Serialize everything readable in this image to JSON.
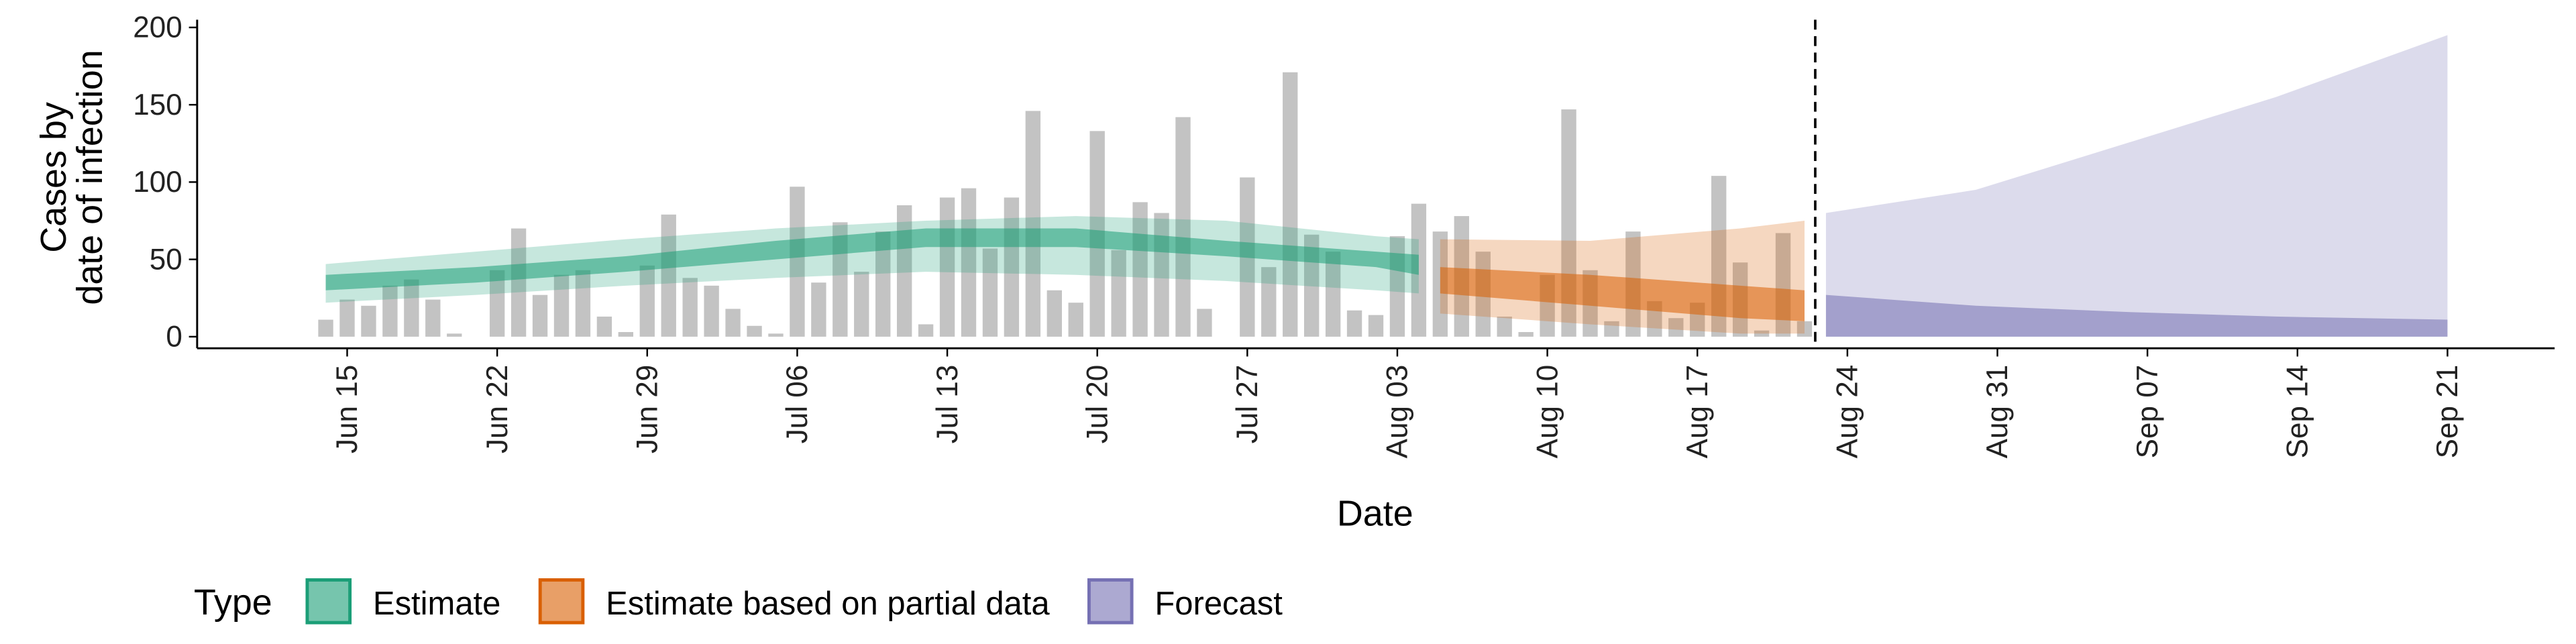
{
  "chart_data": {
    "type": "bar-band",
    "ylabel": [
      "Cases by",
      "date of infection"
    ],
    "xlabel": "Date",
    "legend_title": "Type",
    "legend": "bottom",
    "xlim": [
      160,
      270
    ],
    "ylim": [
      -7.5,
      205
    ],
    "yticks": [
      0,
      50,
      100,
      150,
      200
    ],
    "xticks": [
      {
        "value": 167,
        "label": "Jun 15"
      },
      {
        "value": 174,
        "label": "Jun 22"
      },
      {
        "value": 181,
        "label": "Jun 29"
      },
      {
        "value": 188,
        "label": "Jul 06"
      },
      {
        "value": 195,
        "label": "Jul 13"
      },
      {
        "value": 202,
        "label": "Jul 20"
      },
      {
        "value": 209,
        "label": "Jul 27"
      },
      {
        "value": 216,
        "label": "Aug 03"
      },
      {
        "value": 223,
        "label": "Aug 10"
      },
      {
        "value": 230,
        "label": "Aug 17"
      },
      {
        "value": 237,
        "label": "Aug 24"
      },
      {
        "value": 244,
        "label": "Aug 31"
      },
      {
        "value": 251,
        "label": "Sep 07"
      },
      {
        "value": 258,
        "label": "Sep 14"
      },
      {
        "value": 265,
        "label": "Sep 21"
      }
    ],
    "vline": 235.5,
    "bars": {
      "color": "#a9a9a9",
      "x": [
        166,
        167,
        168,
        169,
        170,
        171,
        172,
        173,
        174,
        175,
        176,
        177,
        178,
        179,
        180,
        181,
        182,
        183,
        184,
        185,
        186,
        187,
        188,
        189,
        190,
        191,
        192,
        193,
        194,
        195,
        196,
        197,
        198,
        199,
        200,
        201,
        202,
        203,
        204,
        205,
        206,
        207,
        208,
        209,
        210,
        211,
        212,
        213,
        214,
        215,
        216,
        217,
        218,
        219,
        220,
        221,
        222,
        223,
        224,
        225,
        226,
        227,
        228,
        229,
        230,
        231,
        232,
        233,
        234,
        235
      ],
      "values": [
        11,
        24,
        20,
        33,
        37,
        24,
        2,
        0,
        43,
        70,
        27,
        40,
        43,
        13,
        3,
        46,
        79,
        38,
        33,
        18,
        7,
        2,
        97,
        35,
        74,
        42,
        68,
        85,
        8,
        90,
        96,
        57,
        90,
        146,
        30,
        22,
        133,
        56,
        87,
        80,
        142,
        18,
        0,
        103,
        45,
        171,
        66,
        55,
        17,
        14,
        65,
        86,
        68,
        78,
        55,
        13,
        3,
        40,
        147,
        43,
        10,
        68,
        23,
        12,
        22,
        104,
        48,
        4,
        67,
        10
      ]
    },
    "series": [
      {
        "name": "Estimate",
        "color": "#1b9e77",
        "x": [
          166,
          173,
          180,
          187,
          194,
          201,
          208,
          215,
          217
        ],
        "lower_90": [
          22,
          27,
          33,
          38,
          42,
          40,
          36,
          30,
          28
        ],
        "upper_90": [
          47,
          55,
          63,
          70,
          75,
          78,
          75,
          65,
          63
        ],
        "lower_50": [
          30,
          35,
          42,
          50,
          58,
          58,
          52,
          45,
          40
        ],
        "upper_50": [
          40,
          45,
          52,
          62,
          70,
          70,
          62,
          55,
          53
        ]
      },
      {
        "name": "Estimate based on partial data",
        "color": "#d95f02",
        "x": [
          218,
          225,
          232,
          235
        ],
        "lower_90": [
          15,
          8,
          2,
          2
        ],
        "upper_90": [
          63,
          62,
          70,
          75
        ],
        "lower_50": [
          28,
          20,
          12,
          10
        ],
        "upper_50": [
          45,
          40,
          33,
          30
        ]
      },
      {
        "name": "Forecast",
        "color": "#7570b3",
        "x": [
          236,
          243,
          250,
          257,
          265
        ],
        "lower_90": [
          0,
          0,
          0,
          0,
          0
        ],
        "upper_90": [
          80,
          95,
          125,
          155,
          195
        ],
        "lower_50": [
          0,
          0,
          0,
          0,
          0
        ],
        "upper_50": [
          27,
          20,
          16,
          13,
          11
        ]
      }
    ]
  }
}
